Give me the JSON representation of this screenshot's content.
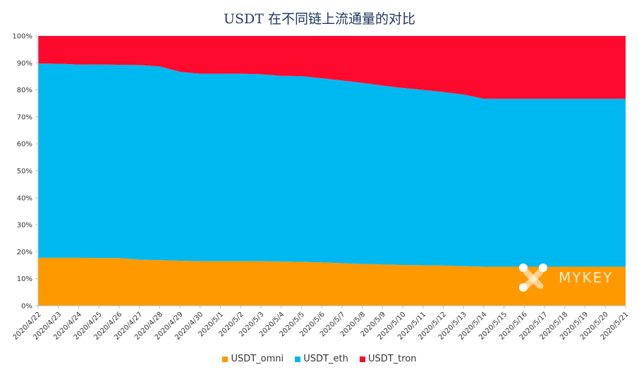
{
  "chart_data": {
    "type": "area",
    "stacked": "percent",
    "title": "USDT 在不同链上流通量的对比",
    "xlabel": "",
    "ylabel": "",
    "ylim": [
      0,
      100
    ],
    "y_ticks": [
      "0%",
      "10%",
      "20%",
      "30%",
      "40%",
      "50%",
      "60%",
      "70%",
      "80%",
      "90%",
      "100%"
    ],
    "categories": [
      "2020/4/22",
      "2020/4/23",
      "2020/4/24",
      "2020/4/25",
      "2020/4/26",
      "2020/4/27",
      "2020/4/28",
      "2020/4/29",
      "2020/4/30",
      "2020/5/1",
      "2020/5/2",
      "2020/5/3",
      "2020/5/4",
      "2020/5/5",
      "2020/5/6",
      "2020/5/7",
      "2020/5/8",
      "2020/5/9",
      "2020/5/10",
      "2020/5/11",
      "2020/5/12",
      "2020/5/13",
      "2020/5/14",
      "2020/5/15",
      "2020/5/16",
      "2020/5/17",
      "2020/5/18",
      "2020/5/19",
      "2020/5/20",
      "2020/5/21"
    ],
    "series": [
      {
        "name": "USDT_omni",
        "color": "#ff9900",
        "values": [
          17.8,
          17.8,
          17.8,
          17.7,
          17.7,
          17.1,
          16.9,
          16.7,
          16.5,
          16.5,
          16.5,
          16.5,
          16.4,
          16.3,
          16.1,
          15.8,
          15.5,
          15.3,
          15.1,
          15.0,
          14.9,
          14.7,
          14.5,
          14.5,
          14.5,
          14.5,
          14.5,
          14.5,
          14.5,
          14.5
        ]
      },
      {
        "name": "USDT_eth",
        "color": "#00b8f0",
        "values": [
          72.0,
          71.9,
          71.6,
          71.7,
          71.6,
          72.1,
          71.8,
          70.0,
          69.5,
          69.5,
          69.5,
          69.3,
          68.8,
          68.8,
          68.2,
          67.7,
          67.1,
          66.3,
          65.6,
          65.0,
          64.3,
          63.6,
          62.2,
          62.2,
          62.2,
          62.2,
          62.2,
          62.2,
          62.2,
          62.2
        ]
      },
      {
        "name": "USDT_tron",
        "color": "#ff0a2f",
        "values": [
          10.2,
          10.3,
          10.6,
          10.6,
          10.7,
          10.8,
          11.3,
          13.3,
          14.0,
          14.0,
          14.0,
          14.2,
          14.8,
          14.9,
          15.7,
          16.5,
          17.4,
          18.4,
          19.3,
          20.0,
          20.8,
          21.7,
          23.3,
          23.3,
          23.3,
          23.3,
          23.3,
          23.3,
          23.3,
          23.3
        ]
      }
    ],
    "grid": false,
    "legend_position": "bottom"
  },
  "watermark": {
    "text": "MYKEY"
  }
}
